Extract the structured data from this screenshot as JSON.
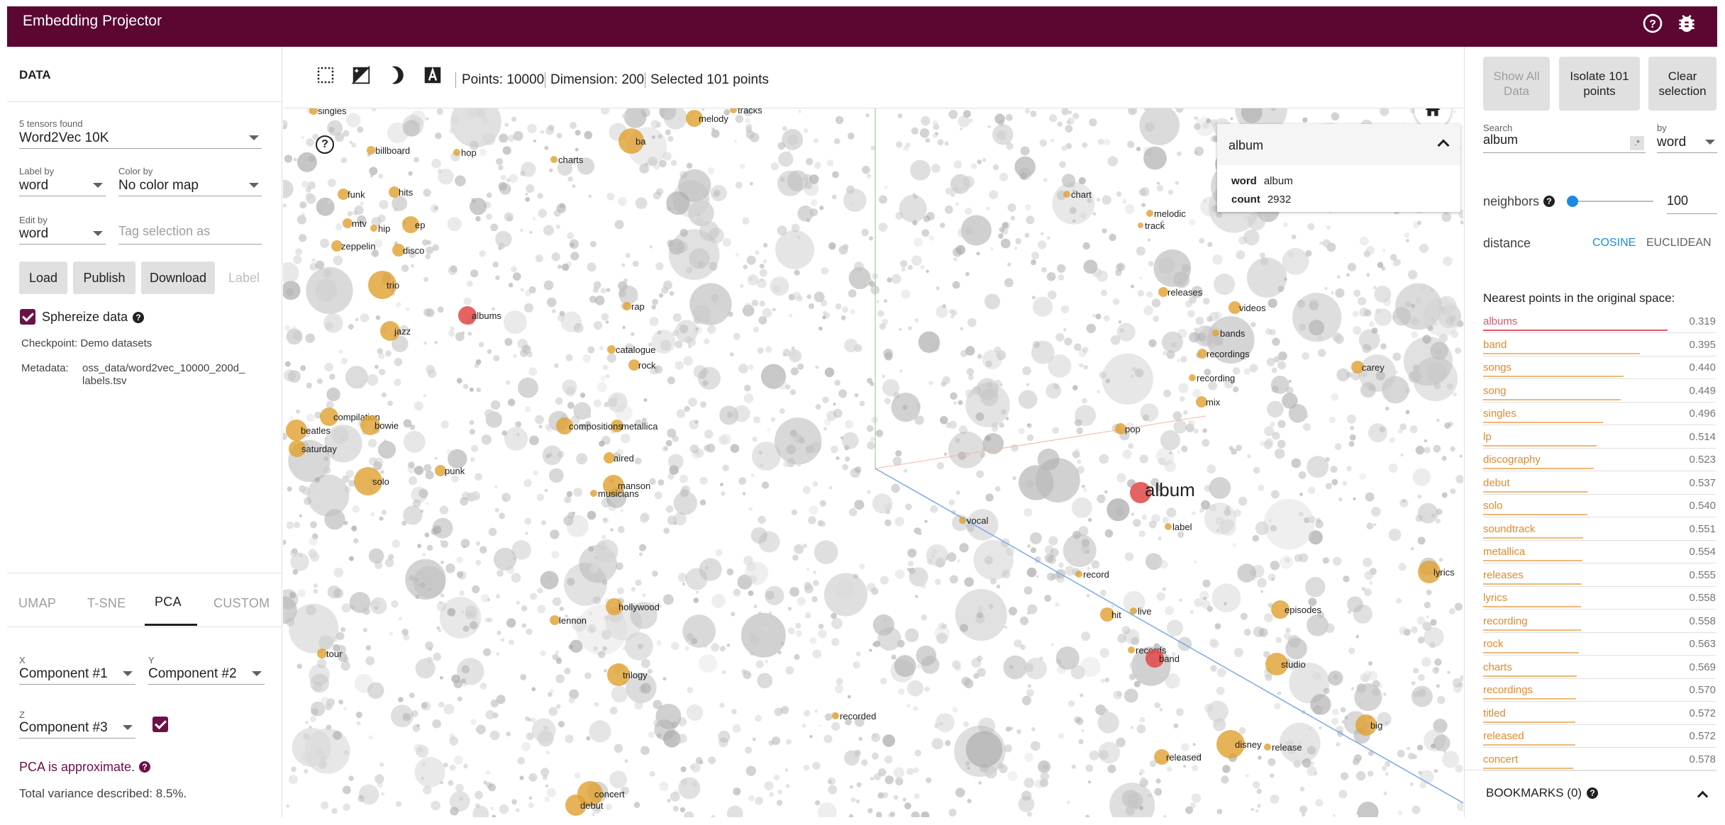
{
  "header": {
    "title": "Embedding Projector"
  },
  "data_panel": {
    "title": "DATA",
    "tensors_found": "5 tensors found",
    "tensor": "Word2Vec 10K",
    "label_by_label": "Label by",
    "label_by": "word",
    "color_by_label": "Color by",
    "color_by": "No color map",
    "edit_by_label": "Edit by",
    "edit_by": "word",
    "tag_placeholder": "Tag selection as",
    "buttons": {
      "load": "Load",
      "publish": "Publish",
      "download": "Download",
      "label": "Label"
    },
    "sphereize": "Sphereize data",
    "checkpoint": "Checkpoint: Demo datasets",
    "metadata_label": "Metadata:",
    "metadata_line1": "oss_data/word2vec_10000_200d_",
    "metadata_line2": "labels.tsv"
  },
  "projection_tabs": [
    "UMAP",
    "T-SNE",
    "PCA",
    "CUSTOM"
  ],
  "pca": {
    "x_label": "X",
    "x_value": "Component #1",
    "y_label": "Y",
    "y_value": "Component #2",
    "z_label": "Z",
    "z_value": "Component #3",
    "approx": "PCA is approximate.",
    "variance": "Total variance described: 8.5%."
  },
  "toolbar": {
    "points": "Points: 10000",
    "dimension": "Dimension: 200",
    "selected": "Selected 101 points"
  },
  "popup": {
    "title": "album",
    "rows": [
      {
        "key": "word",
        "value": "album"
      },
      {
        "key": "count",
        "value": "2932"
      }
    ]
  },
  "viz_labels": [
    {
      "t": "singles",
      "h": 1
    },
    {
      "t": "billboard",
      "h": 1
    },
    {
      "t": "hop",
      "h": 1
    },
    {
      "t": "charts",
      "h": 1
    },
    {
      "t": "tracks",
      "h": 1
    },
    {
      "t": "melody",
      "h": 1
    },
    {
      "t": "funk",
      "h": 1
    },
    {
      "t": "hits",
      "h": 1
    },
    {
      "t": "chart",
      "h": 1
    },
    {
      "t": "melodic",
      "h": 1
    },
    {
      "t": "track",
      "h": 1
    },
    {
      "t": "mtv",
      "h": 1
    },
    {
      "t": "hip",
      "h": 1
    },
    {
      "t": "ep",
      "h": 1
    },
    {
      "t": "zeppelin",
      "h": 1
    },
    {
      "t": "disco",
      "h": 1
    },
    {
      "t": "trio",
      "h": 1
    },
    {
      "t": "releases",
      "h": 1
    },
    {
      "t": "rap",
      "h": 1
    },
    {
      "t": "albums",
      "h": 2
    },
    {
      "t": "videos",
      "h": 1
    },
    {
      "t": "jazz",
      "h": 1
    },
    {
      "t": "bands",
      "h": 1
    },
    {
      "t": "catalogue",
      "h": 1
    },
    {
      "t": "recordings",
      "h": 1
    },
    {
      "t": "rock",
      "h": 1
    },
    {
      "t": "carey",
      "h": 1
    },
    {
      "t": "recording",
      "h": 1
    },
    {
      "t": "mix",
      "h": 1
    },
    {
      "t": "compilation",
      "h": 1
    },
    {
      "t": "beatles",
      "h": 1
    },
    {
      "t": "bowie",
      "h": 1
    },
    {
      "t": "metallica",
      "h": 1
    },
    {
      "t": "pop",
      "h": 1
    },
    {
      "t": "compositions",
      "h": 1
    },
    {
      "t": "saturday",
      "h": 1
    },
    {
      "t": "aired",
      "h": 1
    },
    {
      "t": "punk",
      "h": 1
    },
    {
      "t": "manson",
      "h": 1
    },
    {
      "t": "solo",
      "h": 1
    },
    {
      "t": "musicians",
      "h": 1
    },
    {
      "t": "album",
      "h": 3
    },
    {
      "t": "vocal",
      "h": 1
    },
    {
      "t": "label",
      "h": 1
    },
    {
      "t": "lyrics",
      "h": 1
    },
    {
      "t": "record",
      "h": 1
    },
    {
      "t": "hollywood",
      "h": 1
    },
    {
      "t": "live",
      "h": 1
    },
    {
      "t": "hit",
      "h": 1
    },
    {
      "t": "episodes",
      "h": 1
    },
    {
      "t": "lennon",
      "h": 1
    },
    {
      "t": "records",
      "h": 1
    },
    {
      "t": "tour",
      "h": 1
    },
    {
      "t": "band",
      "h": 2
    },
    {
      "t": "studio",
      "h": 1
    },
    {
      "t": "trilogy",
      "h": 1
    },
    {
      "t": "recorded",
      "h": 1
    },
    {
      "t": "big",
      "h": 1
    },
    {
      "t": "disney",
      "h": 1
    },
    {
      "t": "release",
      "h": 1
    },
    {
      "t": "released",
      "h": 1
    },
    {
      "t": "concert",
      "h": 1
    },
    {
      "t": "debut",
      "h": 1
    },
    {
      "t": "ba",
      "h": 1
    }
  ],
  "right_panel": {
    "show_all": "Show All Data",
    "isolate": "Isolate 101 points",
    "clear": "Clear selection",
    "search_label": "Search",
    "search_value": "album",
    "regex_glyph": ".*",
    "by_label": "by",
    "by_value": "word",
    "neighbors_label": "neighbors",
    "neighbors_value": "100",
    "neighbors_fraction": 0.05,
    "distance_label": "distance",
    "cosine": "COSINE",
    "euclidean": "EUCLIDEAN",
    "nearest_title": "Nearest points in the original space:",
    "nearest": [
      {
        "w": "albums",
        "d": "0.319"
      },
      {
        "w": "band",
        "d": "0.395"
      },
      {
        "w": "songs",
        "d": "0.440"
      },
      {
        "w": "song",
        "d": "0.449"
      },
      {
        "w": "singles",
        "d": "0.496"
      },
      {
        "w": "lp",
        "d": "0.514"
      },
      {
        "w": "discography",
        "d": "0.523"
      },
      {
        "w": "debut",
        "d": "0.537"
      },
      {
        "w": "solo",
        "d": "0.540"
      },
      {
        "w": "soundtrack",
        "d": "0.551"
      },
      {
        "w": "metallica",
        "d": "0.554"
      },
      {
        "w": "releases",
        "d": "0.555"
      },
      {
        "w": "lyrics",
        "d": "0.558"
      },
      {
        "w": "recording",
        "d": "0.558"
      },
      {
        "w": "rock",
        "d": "0.563"
      },
      {
        "w": "charts",
        "d": "0.569"
      },
      {
        "w": "recordings",
        "d": "0.570"
      },
      {
        "w": "titled",
        "d": "0.572"
      },
      {
        "w": "released",
        "d": "0.572"
      },
      {
        "w": "concert",
        "d": "0.578"
      }
    ],
    "bookmarks": "BOOKMARKS (0)"
  },
  "colors": {
    "header": "#5c0632",
    "highlight": "#e04848",
    "neighbor": "#e0a030",
    "accent": "#1e88e5"
  }
}
